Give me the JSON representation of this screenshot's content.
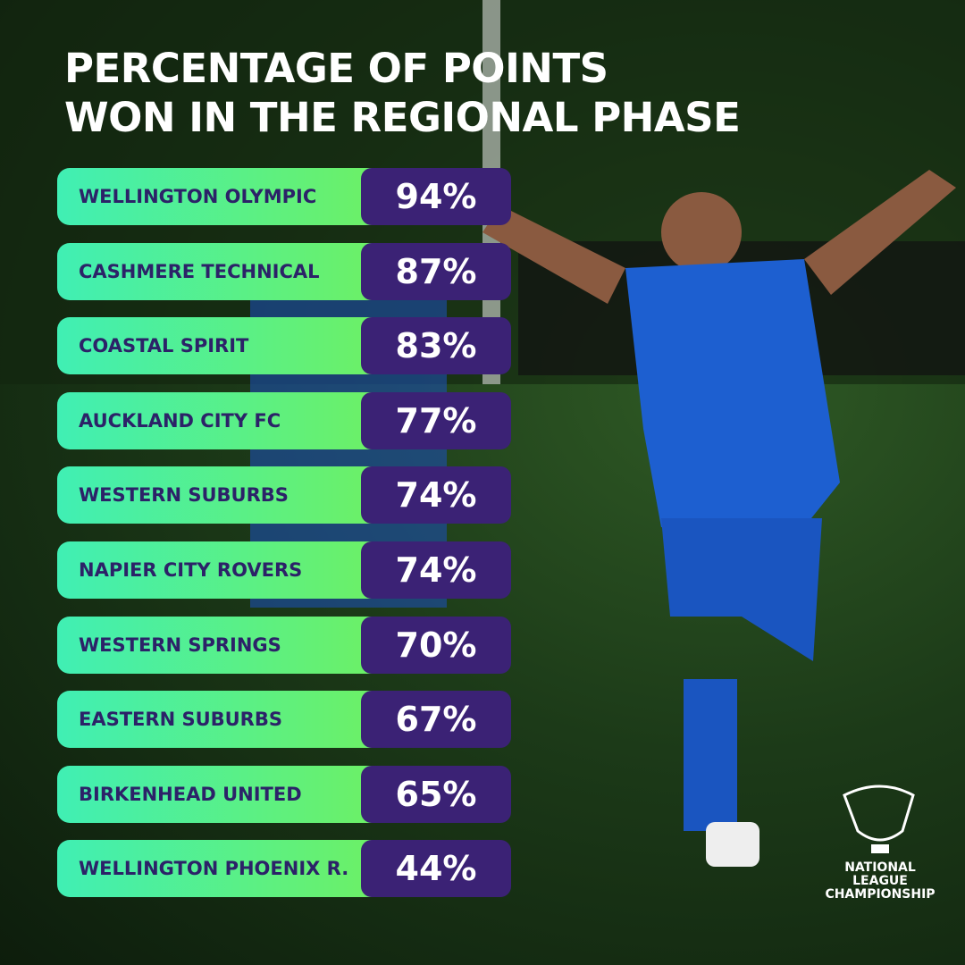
{
  "title_lines": [
    "PERCENTAGE OF POINTS",
    "WON IN THE REGIONAL PHASE"
  ],
  "rows": [
    {
      "team": "WELLINGTON OLYMPIC",
      "value": "94%"
    },
    {
      "team": "CASHMERE TECHNICAL",
      "value": "87%"
    },
    {
      "team": "COASTAL SPIRIT",
      "value": "83%"
    },
    {
      "team": "AUCKLAND CITY FC",
      "value": "77%"
    },
    {
      "team": "WESTERN SUBURBS",
      "value": "74%"
    },
    {
      "team": "NAPIER CITY ROVERS",
      "value": "74%"
    },
    {
      "team": "WESTERN SPRINGS",
      "value": "70%"
    },
    {
      "team": "EASTERN SUBURBS",
      "value": "67%"
    },
    {
      "team": "BIRKENHEAD UNITED",
      "value": "65%"
    },
    {
      "team": "WELLINGTON PHOENIX R.",
      "value": "44%"
    }
  ],
  "logo_lines": [
    "NATIONAL",
    "LEAGUE",
    "CHAMPIONSHIP"
  ]
}
